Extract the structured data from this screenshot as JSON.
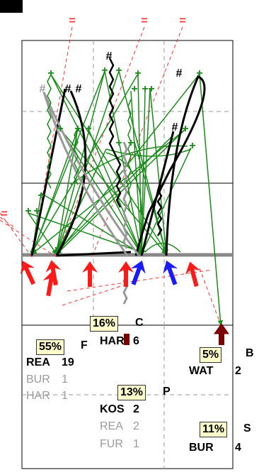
{
  "colors": {
    "red": "#ff1a1a",
    "blue": "#1a1aff",
    "dark_red": "#7a0000",
    "green": "#1a8a1a",
    "grey": "#999999",
    "box_fill": "#ffffcc"
  },
  "corner_marker": {
    "icon": "black-square-icon"
  },
  "symbols": {
    "equals": "=",
    "hash": "#",
    "plus": "+"
  },
  "targets": [
    {
      "id": "C",
      "percent": "16%",
      "name": "HAR",
      "count": "6",
      "extras": []
    },
    {
      "id": "F",
      "percent": "55%",
      "name": "REA",
      "count": "19",
      "extras": [
        {
          "name": "BUR",
          "count": "1"
        },
        {
          "name": "HAR",
          "count": "1"
        }
      ]
    },
    {
      "id": "B",
      "percent": "5%",
      "name": "WAT",
      "count": "2",
      "extras": []
    },
    {
      "id": "P",
      "percent": "13%",
      "name": "KOS",
      "count": "2",
      "extras": [
        {
          "name": "REA",
          "count": "2"
        },
        {
          "name": "FUR",
          "count": "1"
        }
      ]
    },
    {
      "id": "S",
      "percent": "11%",
      "name": "BUR",
      "count": "4",
      "extras": []
    }
  ]
}
